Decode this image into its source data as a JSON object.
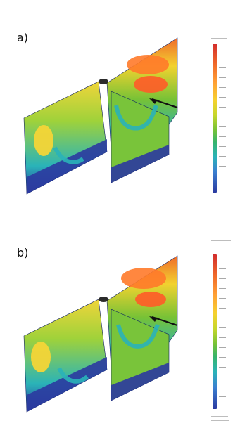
{
  "figure": {
    "panels": [
      {
        "id": "a",
        "label": "a)"
      },
      {
        "id": "b",
        "label": "b)"
      }
    ],
    "colors": {
      "red": "#d22d2d",
      "orange": "#f47d2a",
      "yellow": "#f2d22f",
      "green": "#76c236",
      "cyan": "#2ab3b8",
      "blue": "#2b3aa0",
      "arrow": "#111111"
    }
  }
}
